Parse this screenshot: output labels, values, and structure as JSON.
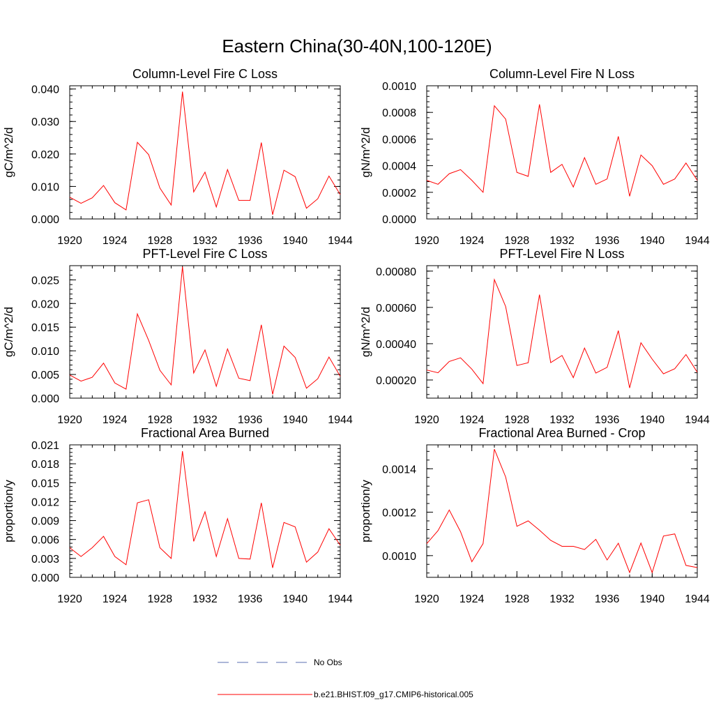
{
  "figure": {
    "title": "Eastern China(30-40N,100-120E)"
  },
  "legend": {
    "obs_label": "No Obs",
    "obs_color": "#5a6fb0",
    "model_label": "b.e21.BHIST.f09_g17.CMIP6-historical.005",
    "model_color": "#ff0000"
  },
  "chart_data": [
    {
      "type": "line",
      "title": "Column-Level Fire C Loss",
      "ylabel": "gC/m^2/d",
      "xlim": [
        1920,
        1944
      ],
      "ylim": [
        0,
        0.041
      ],
      "xticks": [
        1920,
        1924,
        1928,
        1932,
        1936,
        1940,
        1944
      ],
      "xtick_labels": [
        "1920",
        "1924",
        "1928",
        "1932",
        "1936",
        "1940",
        "1944"
      ],
      "yticks": [
        0,
        0.01,
        0.02,
        0.03,
        0.04
      ],
      "ytick_labels": [
        "0.000",
        "0.010",
        "0.020",
        "0.030",
        "0.040"
      ],
      "x": [
        1920,
        1921,
        1922,
        1923,
        1924,
        1925,
        1926,
        1927,
        1928,
        1929,
        1930,
        1931,
        1932,
        1933,
        1934,
        1935,
        1936,
        1937,
        1938,
        1939,
        1940,
        1941,
        1942,
        1943,
        1944
      ],
      "series": [
        {
          "name": "b.e21.BHIST.f09_g17.CMIP6-historical.005",
          "color": "#ff0000",
          "values": [
            0.0067,
            0.0048,
            0.0065,
            0.0103,
            0.005,
            0.0028,
            0.0236,
            0.0198,
            0.0095,
            0.0043,
            0.0392,
            0.0083,
            0.0144,
            0.0037,
            0.0152,
            0.0057,
            0.0057,
            0.0235,
            0.0013,
            0.015,
            0.013,
            0.0033,
            0.0062,
            0.0132,
            0.0075
          ]
        }
      ]
    },
    {
      "type": "line",
      "title": "Column-Level Fire N Loss",
      "ylabel": "gN/m^2/d",
      "xlim": [
        1920,
        1944
      ],
      "ylim": [
        0,
        0.001
      ],
      "xticks": [
        1920,
        1924,
        1928,
        1932,
        1936,
        1940,
        1944
      ],
      "xtick_labels": [
        "1920",
        "1924",
        "1928",
        "1932",
        "1936",
        "1940",
        "1944"
      ],
      "yticks": [
        0,
        0.0002,
        0.0004,
        0.0006,
        0.0008,
        0.001
      ],
      "ytick_labels": [
        "0.0000",
        "0.0002",
        "0.0004",
        "0.0006",
        "0.0008",
        "0.0010"
      ],
      "x": [
        1920,
        1921,
        1922,
        1923,
        1924,
        1925,
        1926,
        1927,
        1928,
        1929,
        1930,
        1931,
        1932,
        1933,
        1934,
        1935,
        1936,
        1937,
        1938,
        1939,
        1940,
        1941,
        1942,
        1943,
        1944
      ],
      "series": [
        {
          "name": "b.e21.BHIST.f09_g17.CMIP6-historical.005",
          "color": "#ff0000",
          "values": [
            0.00029,
            0.00026,
            0.00034,
            0.00037,
            0.00029,
            0.0002,
            0.00085,
            0.00075,
            0.00035,
            0.00032,
            0.00086,
            0.00035,
            0.00041,
            0.00024,
            0.00046,
            0.00026,
            0.0003,
            0.00062,
            0.00017,
            0.00048,
            0.0004,
            0.00026,
            0.0003,
            0.00042,
            0.00029
          ]
        }
      ]
    },
    {
      "type": "line",
      "title": "PFT-Level Fire C Loss",
      "ylabel": "gC/m^2/d",
      "xlim": [
        1920,
        1944
      ],
      "ylim": [
        0,
        0.028
      ],
      "xticks": [
        1920,
        1924,
        1928,
        1932,
        1936,
        1940,
        1944
      ],
      "xtick_labels": [
        "1920",
        "1924",
        "1928",
        "1932",
        "1936",
        "1940",
        "1944"
      ],
      "yticks": [
        0,
        0.005,
        0.01,
        0.015,
        0.02,
        0.025
      ],
      "ytick_labels": [
        "0.000",
        "0.005",
        "0.010",
        "0.015",
        "0.020",
        "0.025"
      ],
      "x": [
        1920,
        1921,
        1922,
        1923,
        1924,
        1925,
        1926,
        1927,
        1928,
        1929,
        1930,
        1931,
        1932,
        1933,
        1934,
        1935,
        1936,
        1937,
        1938,
        1939,
        1940,
        1941,
        1942,
        1943,
        1944
      ],
      "series": [
        {
          "name": "b.e21.BHIST.f09_g17.CMIP6-historical.005",
          "color": "#ff0000",
          "values": [
            0.0049,
            0.0036,
            0.0044,
            0.0074,
            0.0032,
            0.0019,
            0.0178,
            0.0122,
            0.0059,
            0.0028,
            0.0278,
            0.0053,
            0.0102,
            0.0025,
            0.0104,
            0.0042,
            0.0037,
            0.0155,
            0.0008,
            0.011,
            0.0086,
            0.0021,
            0.0041,
            0.0087,
            0.0046
          ]
        }
      ]
    },
    {
      "type": "line",
      "title": "PFT-Level Fire N Loss",
      "ylabel": "gN/m^2/d",
      "xlim": [
        1920,
        1944
      ],
      "ylim": [
        0.0001,
        0.00083
      ],
      "xticks": [
        1920,
        1924,
        1928,
        1932,
        1936,
        1940,
        1944
      ],
      "xtick_labels": [
        "1920",
        "1924",
        "1928",
        "1932",
        "1936",
        "1940",
        "1944"
      ],
      "yticks": [
        0.0002,
        0.0004,
        0.0006,
        0.0008
      ],
      "ytick_labels": [
        "0.00020",
        "0.00040",
        "0.00060",
        "0.00080"
      ],
      "x": [
        1920,
        1921,
        1922,
        1923,
        1924,
        1925,
        1926,
        1927,
        1928,
        1929,
        1930,
        1931,
        1932,
        1933,
        1934,
        1935,
        1936,
        1937,
        1938,
        1939,
        1940,
        1941,
        1942,
        1943,
        1944
      ],
      "series": [
        {
          "name": "b.e21.BHIST.f09_g17.CMIP6-historical.005",
          "color": "#ff0000",
          "values": [
            0.000255,
            0.00024,
            0.000302,
            0.000322,
            0.00026,
            0.00018,
            0.000753,
            0.000605,
            0.00028,
            0.000295,
            0.00067,
            0.000296,
            0.000335,
            0.000213,
            0.000376,
            0.000238,
            0.00027,
            0.000472,
            0.000156,
            0.000405,
            0.000315,
            0.000234,
            0.000262,
            0.00034,
            0.000243
          ]
        }
      ]
    },
    {
      "type": "line",
      "title": "Fractional Area Burned",
      "ylabel": "proportion/y",
      "xlim": [
        1920,
        1944
      ],
      "ylim": [
        0,
        0.021
      ],
      "xticks": [
        1920,
        1924,
        1928,
        1932,
        1936,
        1940,
        1944
      ],
      "xtick_labels": [
        "1920",
        "1924",
        "1928",
        "1932",
        "1936",
        "1940",
        "1944"
      ],
      "yticks": [
        0,
        0.003,
        0.006,
        0.009,
        0.012,
        0.015,
        0.018,
        0.021
      ],
      "ytick_labels": [
        "0.000",
        "0.003",
        "0.006",
        "0.009",
        "0.012",
        "0.015",
        "0.018",
        "0.021"
      ],
      "x": [
        1920,
        1921,
        1922,
        1923,
        1924,
        1925,
        1926,
        1927,
        1928,
        1929,
        1930,
        1931,
        1932,
        1933,
        1934,
        1935,
        1936,
        1937,
        1938,
        1939,
        1940,
        1941,
        1942,
        1943,
        1944
      ],
      "series": [
        {
          "name": "b.e21.BHIST.f09_g17.CMIP6-historical.005",
          "color": "#ff0000",
          "values": [
            0.0047,
            0.0033,
            0.0047,
            0.0065,
            0.0033,
            0.002,
            0.0118,
            0.0123,
            0.0047,
            0.003,
            0.02,
            0.0057,
            0.0104,
            0.0033,
            0.0093,
            0.003,
            0.0029,
            0.0118,
            0.0015,
            0.0087,
            0.008,
            0.0024,
            0.004,
            0.0077,
            0.0051
          ]
        }
      ]
    },
    {
      "type": "line",
      "title": "Fractional Area Burned - Crop",
      "ylabel": "proportion/y",
      "xlim": [
        1920,
        1944
      ],
      "ylim": [
        0.0009,
        0.00151
      ],
      "xticks": [
        1920,
        1924,
        1928,
        1932,
        1936,
        1940,
        1944
      ],
      "xtick_labels": [
        "1920",
        "1924",
        "1928",
        "1932",
        "1936",
        "1940",
        "1944"
      ],
      "yticks": [
        0.001,
        0.0012,
        0.0014
      ],
      "ytick_labels": [
        "0.0010",
        "0.0012",
        "0.0014"
      ],
      "x": [
        1920,
        1921,
        1922,
        1923,
        1924,
        1925,
        1926,
        1927,
        1928,
        1929,
        1930,
        1931,
        1932,
        1933,
        1934,
        1935,
        1936,
        1937,
        1938,
        1939,
        1940,
        1941,
        1942,
        1943,
        1944
      ],
      "series": [
        {
          "name": "b.e21.BHIST.f09_g17.CMIP6-historical.005",
          "color": "#ff0000",
          "values": [
            0.001055,
            0.001115,
            0.00121,
            0.00111,
            0.000972,
            0.001055,
            0.00149,
            0.001362,
            0.001135,
            0.00116,
            0.001117,
            0.00107,
            0.001043,
            0.001043,
            0.001028,
            0.001075,
            0.00098,
            0.001057,
            0.000922,
            0.001058,
            0.000922,
            0.00109,
            0.0011,
            0.000955,
            0.000945
          ]
        }
      ]
    }
  ]
}
